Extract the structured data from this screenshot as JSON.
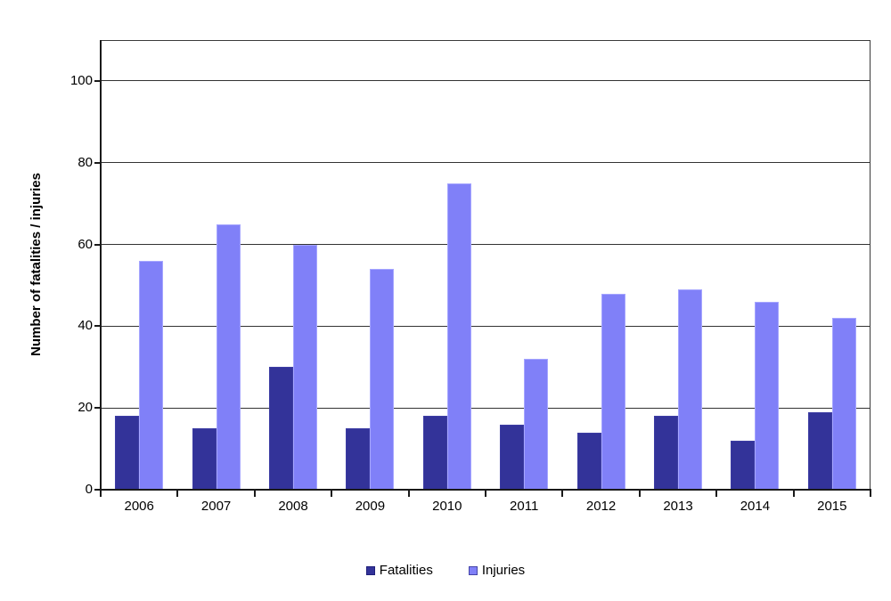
{
  "chart_data": {
    "type": "bar",
    "title": "",
    "xlabel": "",
    "ylabel": "Number of fatalities / injuries",
    "categories": [
      "2006",
      "2007",
      "2008",
      "2009",
      "2010",
      "2011",
      "2012",
      "2013",
      "2014",
      "2015"
    ],
    "series": [
      {
        "name": "Fatalities",
        "color": "#333399",
        "edge_color": "#3d3da4",
        "marker_border": "#1f1f7a",
        "values": [
          18,
          15,
          30,
          15,
          18,
          16,
          14,
          18,
          12,
          19
        ]
      },
      {
        "name": "Injuries",
        "color": "#8080f8",
        "edge_color": "#a6a6ff",
        "marker_border": "#4444a8",
        "values": [
          56,
          65,
          60,
          54,
          75,
          32,
          48,
          49,
          46,
          42
        ]
      }
    ],
    "yticks": [
      0,
      20,
      40,
      60,
      80,
      100
    ],
    "ylim": [
      0,
      110
    ],
    "grid": true,
    "gridline_color": "#333333",
    "axis_color": "#1a1a1a",
    "text_color": "#000000",
    "background_color": "#ffffff",
    "legend_position": "bottom"
  }
}
